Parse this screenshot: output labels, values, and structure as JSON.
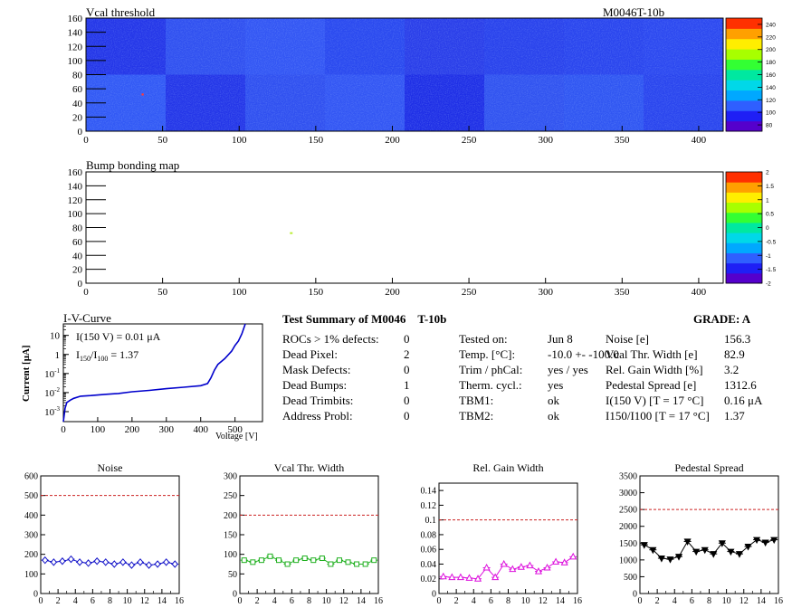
{
  "module_id": "M0046T-10b",
  "chart_data": [
    {
      "type": "heatmap",
      "title": "Vcal threshold",
      "x_ticks": [
        0,
        50,
        100,
        150,
        200,
        250,
        300,
        350,
        400
      ],
      "y_ticks": [
        0,
        20,
        40,
        60,
        80,
        100,
        120,
        140,
        160
      ],
      "xlim": [
        0,
        416
      ],
      "ylim": [
        0,
        160
      ],
      "colorbar_ticks": [
        80,
        100,
        120,
        140,
        160,
        180,
        200,
        220,
        240
      ],
      "colorbar_range": [
        70,
        250
      ],
      "colorscale": [
        "#5500cc",
        "#1f1ff5",
        "#2f5fff",
        "#00a8ff",
        "#00d8e8",
        "#00e8a0",
        "#33ff33",
        "#a8ff00",
        "#ffee00",
        "#ffa000",
        "#ff3000"
      ]
    },
    {
      "type": "heatmap",
      "title": "Bump bonding map",
      "x_ticks": [
        0,
        50,
        100,
        150,
        200,
        250,
        300,
        350,
        400
      ],
      "y_ticks": [
        0,
        20,
        40,
        60,
        80,
        100,
        120,
        140,
        160
      ],
      "xlim": [
        0,
        416
      ],
      "ylim": [
        0,
        160
      ],
      "colorbar_ticks": [
        -2,
        -1.5,
        -1,
        -0.5,
        0,
        0.5,
        1,
        1.5,
        2
      ],
      "colorbar_range": [
        -2,
        2
      ],
      "points": [
        {
          "x": 134,
          "y": 72
        }
      ]
    },
    {
      "type": "line",
      "title": "I-V-Curve",
      "xlabel": "Voltage [V]",
      "ylabel": "Current [μA]",
      "xlim": [
        0,
        580
      ],
      "ylim_log": [
        0.0003,
        40
      ],
      "x_ticks": [
        0,
        100,
        200,
        300,
        400,
        500
      ],
      "y_ticks": [
        {
          "value": 0.001,
          "label": "10",
          "exp": "-3"
        },
        {
          "value": 0.01,
          "label": "10",
          "exp": "-2"
        },
        {
          "value": 0.1,
          "label": "10",
          "exp": "-1"
        },
        {
          "value": 1,
          "label": "1",
          "exp": ""
        },
        {
          "value": 10,
          "label": "10",
          "exp": ""
        }
      ],
      "annotation_1": "I(150 V) = 0.01 μA",
      "annotation_2_prefix": "I",
      "annotation_2_sub1": "150",
      "annotation_2_mid": "/I",
      "annotation_2_sub2": "100",
      "annotation_2_value": " =  1.37",
      "x": [
        0,
        5,
        10,
        20,
        30,
        50,
        80,
        120,
        160,
        200,
        250,
        300,
        350,
        400,
        420,
        430,
        440,
        450,
        470,
        490,
        500,
        510,
        520,
        530
      ],
      "y": [
        0.0003,
        0.0015,
        0.003,
        0.004,
        0.005,
        0.0065,
        0.007,
        0.008,
        0.009,
        0.011,
        0.013,
        0.016,
        0.019,
        0.023,
        0.03,
        0.06,
        0.15,
        0.3,
        0.6,
        1.5,
        3,
        5,
        12,
        40
      ]
    },
    {
      "type": "scatter",
      "title": "Noise",
      "xlim": [
        0,
        16
      ],
      "ylim": [
        0,
        600
      ],
      "x_ticks": [
        0,
        2,
        4,
        6,
        8,
        10,
        12,
        14,
        16
      ],
      "y_ticks": [
        0,
        100,
        200,
        300,
        400,
        500,
        600
      ],
      "threshold": 500,
      "color": "#1010c8",
      "marker": "diamond",
      "x": [
        0.5,
        1.5,
        2.5,
        3.5,
        4.5,
        5.5,
        6.5,
        7.5,
        8.5,
        9.5,
        10.5,
        11.5,
        12.5,
        13.5,
        14.5,
        15.5
      ],
      "y": [
        170,
        160,
        165,
        175,
        160,
        155,
        165,
        160,
        150,
        160,
        145,
        160,
        145,
        150,
        160,
        150
      ]
    },
    {
      "type": "line",
      "title": "Vcal Thr. Width",
      "xlim": [
        0,
        16
      ],
      "ylim": [
        0,
        300
      ],
      "x_ticks": [
        0,
        2,
        4,
        6,
        8,
        10,
        12,
        14,
        16
      ],
      "y_ticks": [
        0,
        50,
        100,
        150,
        200,
        250,
        300
      ],
      "threshold": 200,
      "color": "#20b020",
      "marker": "square",
      "x": [
        0.5,
        1.5,
        2.5,
        3.5,
        4.5,
        5.5,
        6.5,
        7.5,
        8.5,
        9.5,
        10.5,
        11.5,
        12.5,
        13.5,
        14.5,
        15.5
      ],
      "y": [
        85,
        80,
        85,
        95,
        85,
        75,
        85,
        90,
        85,
        90,
        75,
        85,
        80,
        75,
        75,
        85
      ]
    },
    {
      "type": "line",
      "title": "Rel. Gain Width",
      "xlim": [
        0,
        16
      ],
      "ylim": [
        0,
        0.15
      ],
      "x_ticks": [
        0,
        2,
        4,
        6,
        8,
        10,
        12,
        14,
        16
      ],
      "y_ticks": [
        0,
        0.02,
        0.04,
        0.06,
        0.08,
        0.1,
        0.12,
        0.14
      ],
      "threshold": 0.1,
      "color": "#dd11dd",
      "marker": "triangle",
      "x": [
        0.5,
        1.5,
        2.5,
        3.5,
        4.5,
        5.5,
        6.5,
        7.5,
        8.5,
        9.5,
        10.5,
        11.5,
        12.5,
        13.5,
        14.5,
        15.5
      ],
      "y": [
        0.023,
        0.022,
        0.022,
        0.021,
        0.02,
        0.035,
        0.022,
        0.04,
        0.033,
        0.036,
        0.038,
        0.03,
        0.035,
        0.043,
        0.042,
        0.05
      ]
    },
    {
      "type": "line",
      "title": "Pedestal Spread",
      "xlim": [
        0,
        16
      ],
      "ylim": [
        0,
        3500
      ],
      "x_ticks": [
        0,
        2,
        4,
        6,
        8,
        10,
        12,
        14,
        16
      ],
      "y_ticks": [
        0,
        500,
        1000,
        1500,
        2000,
        2500,
        3000,
        3500
      ],
      "threshold": 2500,
      "color": "#000000",
      "marker": "triangle-down",
      "x": [
        0.5,
        1.5,
        2.5,
        3.5,
        4.5,
        5.5,
        6.5,
        7.5,
        8.5,
        9.5,
        10.5,
        11.5,
        12.5,
        13.5,
        14.5,
        15.5
      ],
      "y": [
        1450,
        1300,
        1050,
        1020,
        1100,
        1550,
        1250,
        1300,
        1180,
        1500,
        1250,
        1180,
        1400,
        1600,
        1520,
        1600
      ]
    }
  ],
  "summary": {
    "title": "Test Summary of M0046",
    "title_suffix": "T-10b",
    "grade": "GRADE:  A",
    "left": [
      {
        "label": "ROCs > 1% defects:",
        "value": "0"
      },
      {
        "label": "Dead Pixel:",
        "value": "2"
      },
      {
        "label": "Mask Defects:",
        "value": "0"
      },
      {
        "label": "Dead Bumps:",
        "value": "1"
      },
      {
        "label": "Dead Trimbits:",
        "value": "0"
      },
      {
        "label": "Address Probl:",
        "value": "0"
      }
    ],
    "mid": [
      {
        "label": "Tested on:",
        "value": "Jun 8"
      },
      {
        "label": "Temp. [°C]:",
        "value": "-10.0 +- -100.0"
      },
      {
        "label": "Trim / phCal:",
        "value": "yes / yes"
      },
      {
        "label": "Therm. cycl.:",
        "value": "yes"
      },
      {
        "label": "TBM1:",
        "value": "ok"
      },
      {
        "label": "TBM2:",
        "value": "ok"
      }
    ],
    "right": [
      {
        "label": "Noise [e]",
        "value": "156.3"
      },
      {
        "label": "Vcal Thr. Width [e]",
        "value": "82.9"
      },
      {
        "label": "Rel. Gain Width [%]",
        "value": "3.2"
      },
      {
        "label": "Pedestal Spread [e]",
        "value": "1312.6"
      },
      {
        "label": "I(150 V) [T = 17 °C]",
        "value": "0.16 μA"
      },
      {
        "label": "I150/I100  [T = 17 °C]",
        "value": "1.37"
      }
    ]
  }
}
